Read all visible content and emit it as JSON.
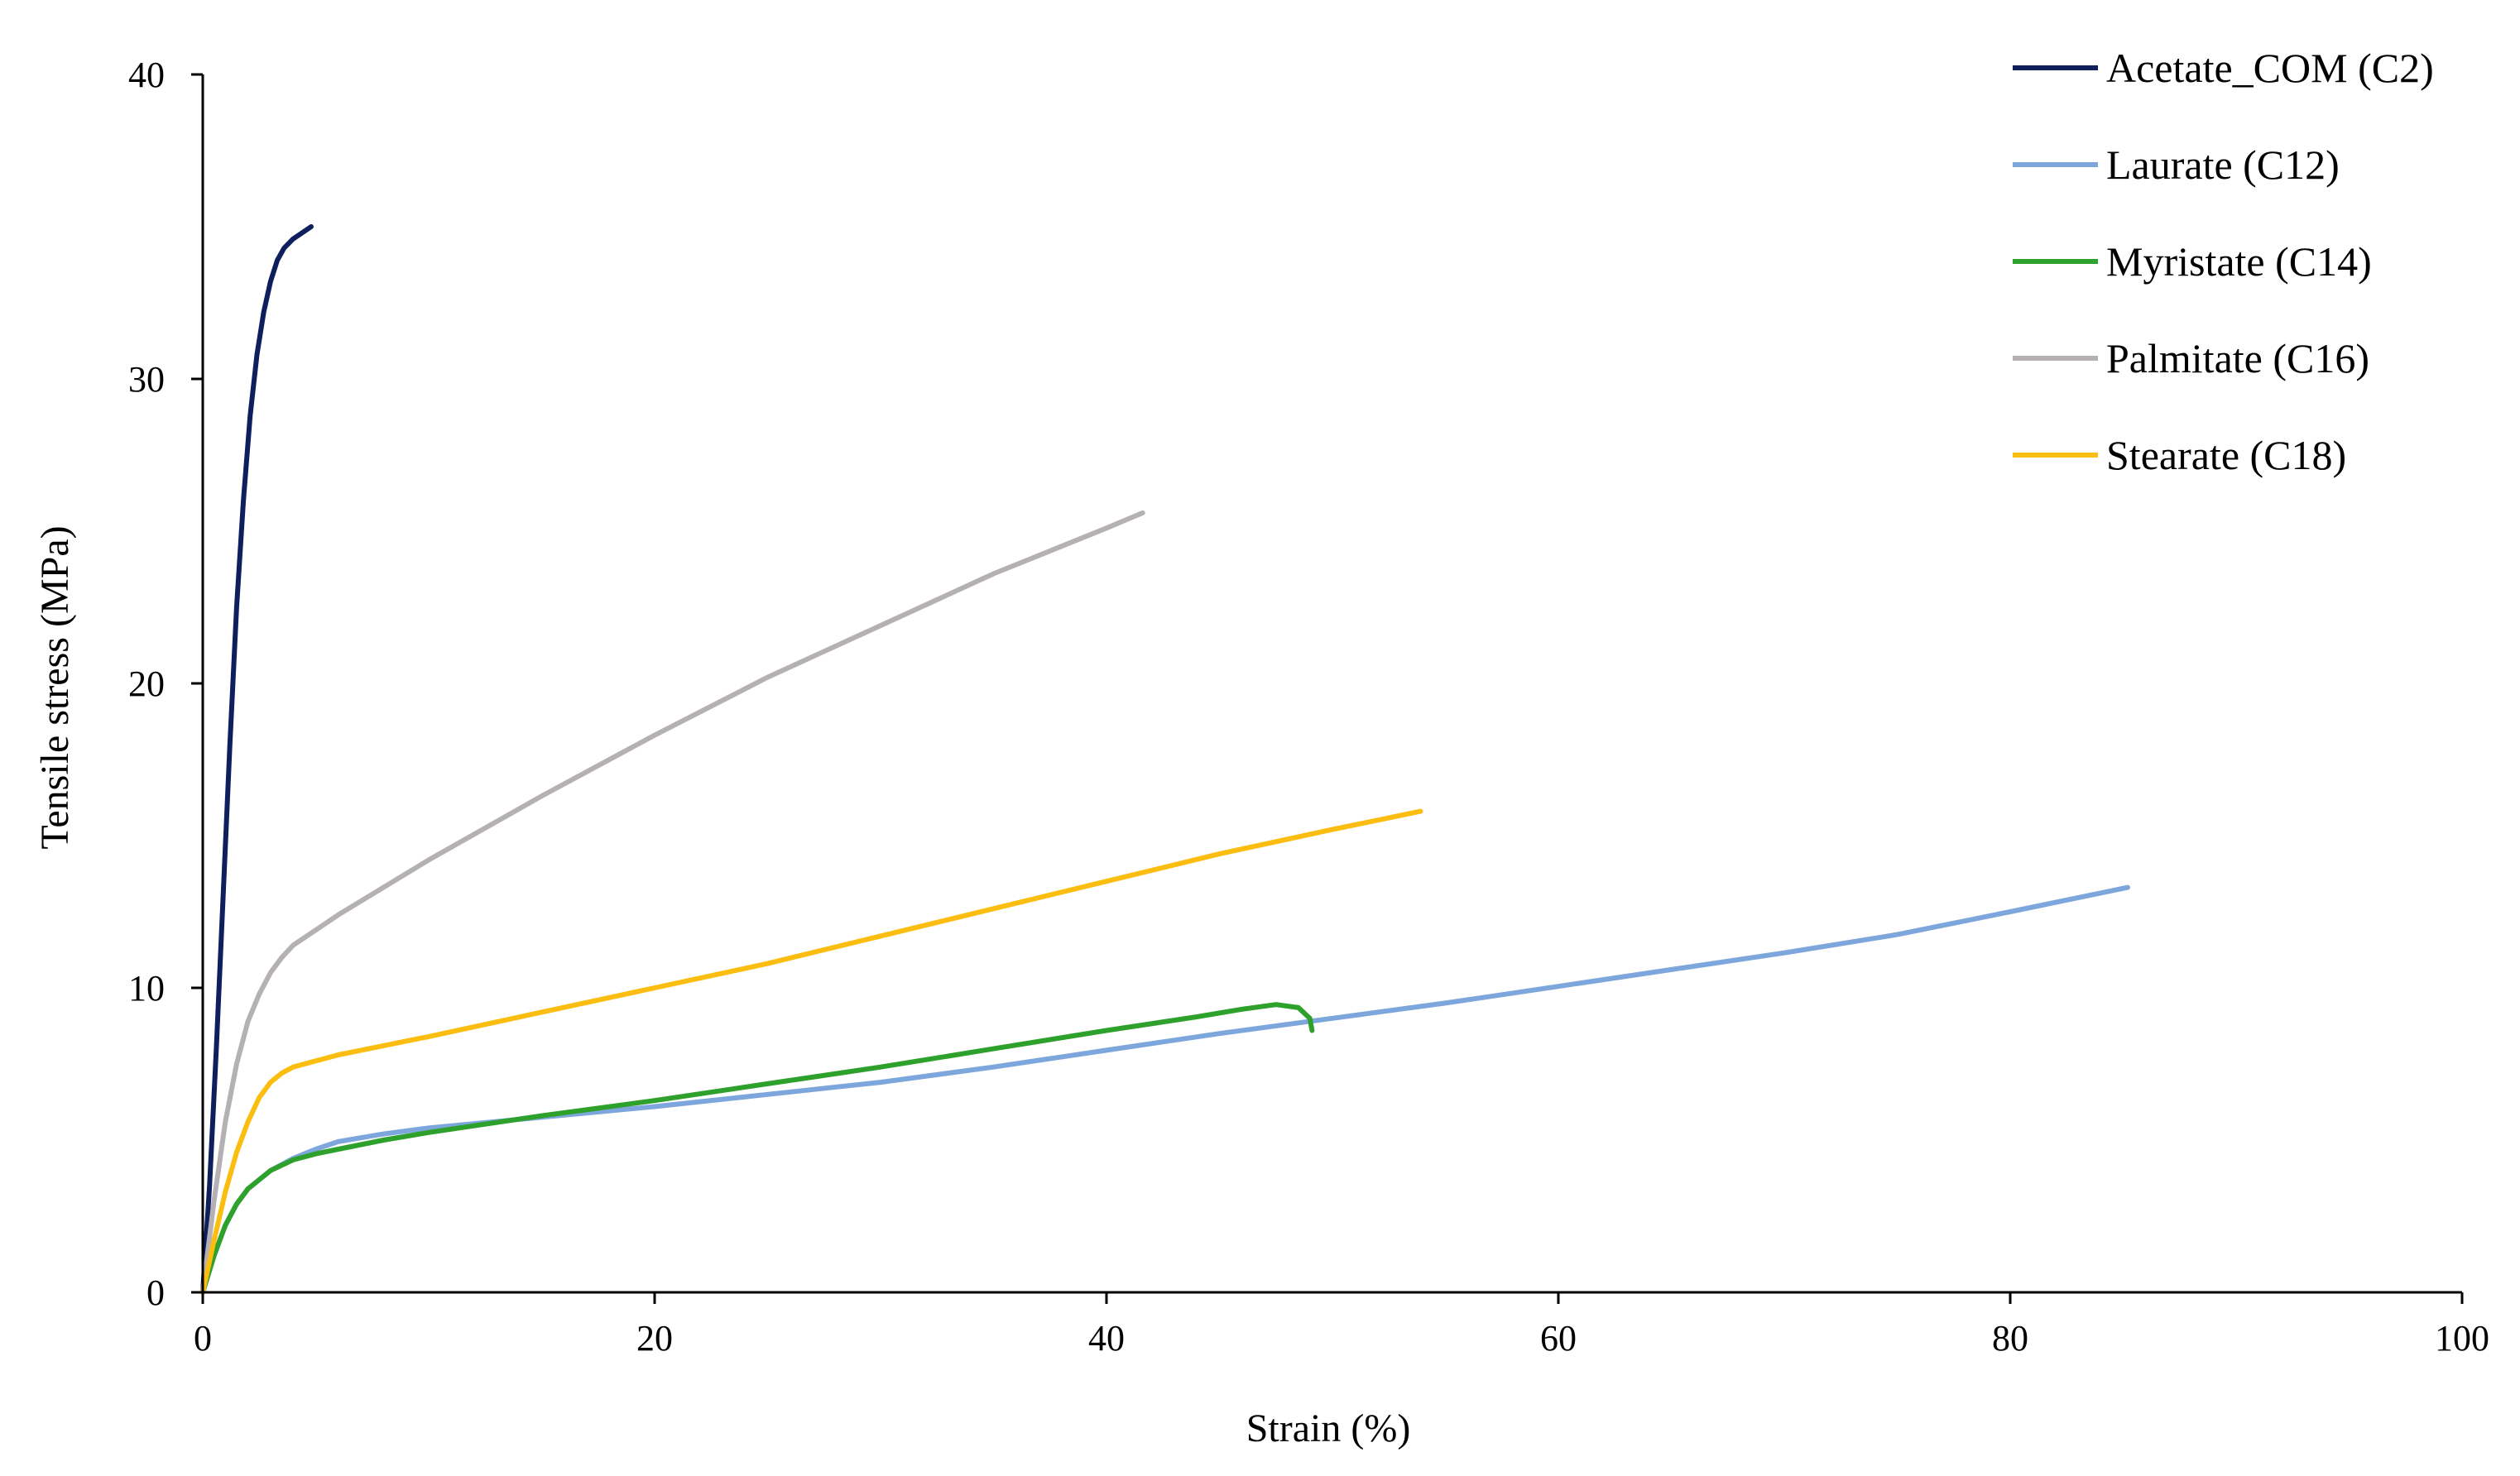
{
  "chart_data": {
    "type": "line",
    "title": "",
    "xlabel": "Strain (%)",
    "ylabel": "Tensile stress (MPa)",
    "xlim": [
      0,
      100
    ],
    "ylim": [
      0,
      40
    ],
    "xticks": [
      0,
      20,
      40,
      60,
      80,
      100
    ],
    "yticks": [
      0,
      10,
      20,
      30,
      40
    ],
    "grid": false,
    "legend_position": "top-right",
    "series": [
      {
        "name": "Acetate_COM (C2)",
        "color": "#0d1f5c",
        "x": [
          0,
          0.3,
          0.6,
          0.9,
          1.2,
          1.5,
          1.8,
          2.1,
          2.4,
          2.7,
          3.0,
          3.3,
          3.6,
          4.0,
          4.4,
          4.8
        ],
        "y": [
          0,
          3.5,
          8,
          13,
          18,
          22.5,
          26,
          28.8,
          30.8,
          32.2,
          33.2,
          33.9,
          34.3,
          34.6,
          34.8,
          35.0
        ]
      },
      {
        "name": "Laurate (C12)",
        "color": "#7da7dc",
        "x": [
          0,
          0.5,
          1,
          1.5,
          2,
          3,
          4,
          5,
          6,
          8,
          10,
          15,
          20,
          25,
          30,
          35,
          40,
          45,
          50,
          55,
          60,
          65,
          70,
          75,
          80,
          85.2
        ],
        "y": [
          0,
          1.2,
          2.2,
          2.9,
          3.4,
          4.0,
          4.4,
          4.7,
          4.95,
          5.2,
          5.4,
          5.75,
          6.1,
          6.5,
          6.9,
          7.4,
          7.95,
          8.5,
          9.0,
          9.5,
          10.05,
          10.6,
          11.15,
          11.75,
          12.5,
          13.3
        ]
      },
      {
        "name": "Myristate (C14)",
        "color": "#2ea02c",
        "x": [
          0,
          0.5,
          1,
          1.5,
          2,
          3,
          4,
          5,
          6,
          8,
          10,
          15,
          20,
          25,
          30,
          35,
          40,
          44,
          46,
          47.5,
          48.5,
          49,
          49.1
        ],
        "y": [
          0,
          1.2,
          2.2,
          2.9,
          3.4,
          4.0,
          4.35,
          4.55,
          4.7,
          5.0,
          5.25,
          5.8,
          6.3,
          6.85,
          7.4,
          8.0,
          8.6,
          9.05,
          9.3,
          9.45,
          9.35,
          9.0,
          8.6
        ]
      },
      {
        "name": "Palmitate (C16)",
        "color": "#b4b0b4",
        "x": [
          0,
          0.5,
          1,
          1.5,
          2,
          2.5,
          3,
          3.5,
          4,
          5,
          6,
          8,
          10,
          15,
          20,
          25,
          30,
          35,
          40,
          41.6
        ],
        "y": [
          0,
          3.0,
          5.6,
          7.5,
          8.9,
          9.8,
          10.5,
          11.0,
          11.4,
          11.9,
          12.4,
          13.3,
          14.2,
          16.3,
          18.3,
          20.2,
          21.9,
          23.6,
          25.1,
          25.6
        ]
      },
      {
        "name": "Stearate (C18)",
        "color": "#fbbd0f",
        "x": [
          0,
          0.5,
          1,
          1.5,
          2,
          2.5,
          3,
          3.5,
          4,
          5,
          6,
          8,
          10,
          15,
          20,
          25,
          30,
          35,
          40,
          45,
          50,
          53.9
        ],
        "y": [
          0,
          1.7,
          3.3,
          4.6,
          5.6,
          6.4,
          6.9,
          7.2,
          7.4,
          7.6,
          7.8,
          8.1,
          8.4,
          9.2,
          10.0,
          10.8,
          11.7,
          12.6,
          13.5,
          14.4,
          15.2,
          15.8
        ]
      }
    ]
  }
}
